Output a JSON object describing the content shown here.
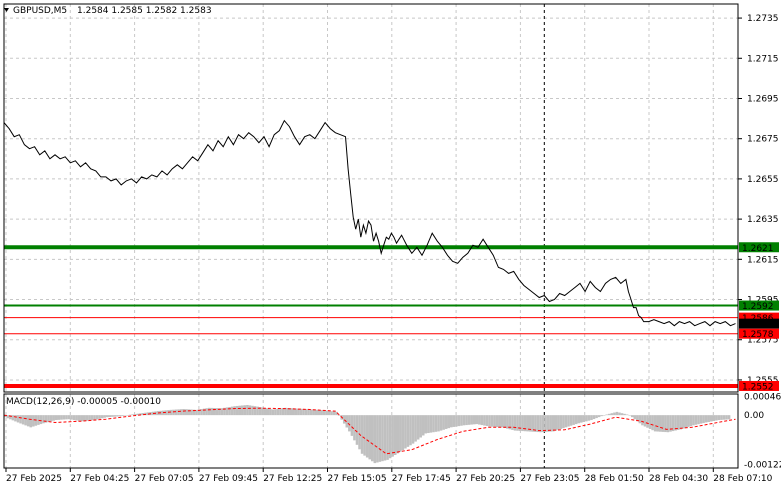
{
  "window": {
    "symbol_timeframe": "GBPUSD,M5",
    "ohlc": "1.2584 1.2585 1.2582 1.2583",
    "menu_icon": "triangle-down-icon"
  },
  "chart_data": [
    {
      "type": "line",
      "title": "GBPUSD,M5  1.2584 1.2585 1.2582 1.2583",
      "ylim": [
        1.2549,
        1.2742
      ],
      "y_ticks": [
        1.2735,
        1.2715,
        1.2695,
        1.2675,
        1.2655,
        1.2635,
        1.2615,
        1.2595,
        1.2575,
        1.2555
      ],
      "y_tick_labels": [
        "1.2735",
        "1.2715",
        "1.2695",
        "1.2675",
        "1.2655",
        "1.2635",
        "1.2615",
        "1.2595",
        "1.2575",
        "1.2555"
      ],
      "x_tick_labels": [
        "27 Feb 2025",
        "27 Feb 04:25",
        "27 Feb 07:05",
        "27 Feb 09:45",
        "27 Feb 12:25",
        "27 Feb 15:05",
        "27 Feb 17:45",
        "27 Feb 20:25",
        "27 Feb 23:05",
        "28 Feb 01:50",
        "28 Feb 04:30",
        "28 Feb 07:10"
      ],
      "grid": true,
      "series": [
        {
          "color": "#000000",
          "values": [
            [
              0,
              1.2683
            ],
            [
              2,
              1.268
            ],
            [
              4,
              1.2676
            ],
            [
              6,
              1.2677
            ],
            [
              8,
              1.2672
            ],
            [
              10,
              1.267
            ],
            [
              12,
              1.2671
            ],
            [
              14,
              1.2667
            ],
            [
              16,
              1.2669
            ],
            [
              18,
              1.2665
            ],
            [
              20,
              1.2667
            ],
            [
              22,
              1.2665
            ],
            [
              24,
              1.2666
            ],
            [
              26,
              1.2663
            ],
            [
              28,
              1.2664
            ],
            [
              30,
              1.2661
            ],
            [
              32,
              1.2663
            ],
            [
              34,
              1.266
            ],
            [
              36,
              1.2659
            ],
            [
              38,
              1.2656
            ],
            [
              40,
              1.2656
            ],
            [
              42,
              1.2654
            ],
            [
              44,
              1.2655
            ],
            [
              46,
              1.2652
            ],
            [
              48,
              1.2654
            ],
            [
              50,
              1.2655
            ],
            [
              52,
              1.2653
            ],
            [
              54,
              1.2656
            ],
            [
              56,
              1.2655
            ],
            [
              58,
              1.2657
            ],
            [
              60,
              1.2656
            ],
            [
              62,
              1.2659
            ],
            [
              64,
              1.2657
            ],
            [
              66,
              1.266
            ],
            [
              68,
              1.2662
            ],
            [
              70,
              1.266
            ],
            [
              72,
              1.2663
            ],
            [
              74,
              1.2666
            ],
            [
              76,
              1.2664
            ],
            [
              78,
              1.2668
            ],
            [
              80,
              1.2672
            ],
            [
              82,
              1.2669
            ],
            [
              84,
              1.2674
            ],
            [
              86,
              1.2671
            ],
            [
              88,
              1.2676
            ],
            [
              90,
              1.2672
            ],
            [
              92,
              1.2677
            ],
            [
              94,
              1.2675
            ],
            [
              96,
              1.2678
            ],
            [
              98,
              1.2676
            ],
            [
              100,
              1.2673
            ],
            [
              102,
              1.2676
            ],
            [
              104,
              1.2671
            ],
            [
              106,
              1.2677
            ],
            [
              108,
              1.2679
            ],
            [
              110,
              1.2684
            ],
            [
              112,
              1.2681
            ],
            [
              114,
              1.2676
            ],
            [
              116,
              1.2672
            ],
            [
              118,
              1.2676
            ],
            [
              120,
              1.2677
            ],
            [
              122,
              1.2675
            ],
            [
              124,
              1.2679
            ],
            [
              126,
              1.2683
            ],
            [
              128,
              1.268
            ],
            [
              130,
              1.2678
            ],
            [
              132,
              1.2677
            ],
            [
              134,
              1.2676
            ],
            [
              135,
              1.266
            ],
            [
              136,
              1.2648
            ],
            [
              137,
              1.2636
            ],
            [
              138,
              1.263
            ],
            [
              139,
              1.2635
            ],
            [
              140,
              1.2626
            ],
            [
              141,
              1.2632
            ],
            [
              142,
              1.2628
            ],
            [
              143,
              1.2634
            ],
            [
              144,
              1.2632
            ],
            [
              145,
              1.2624
            ],
            [
              146,
              1.2628
            ],
            [
              147,
              1.2624
            ],
            [
              148,
              1.2618
            ],
            [
              149,
              1.2622
            ],
            [
              150,
              1.2626
            ],
            [
              151,
              1.2625
            ],
            [
              152,
              1.2628
            ],
            [
              153,
              1.2626
            ],
            [
              154,
              1.2623
            ],
            [
              155,
              1.2625
            ],
            [
              156,
              1.2627
            ],
            [
              158,
              1.2622
            ],
            [
              160,
              1.2618
            ],
            [
              162,
              1.2621
            ],
            [
              164,
              1.2617
            ],
            [
              166,
              1.2622
            ],
            [
              168,
              1.2628
            ],
            [
              170,
              1.2624
            ],
            [
              172,
              1.2621
            ],
            [
              174,
              1.2617
            ],
            [
              176,
              1.2614
            ],
            [
              178,
              1.2613
            ],
            [
              180,
              1.2616
            ],
            [
              182,
              1.2618
            ],
            [
              184,
              1.2622
            ],
            [
              186,
              1.2621
            ],
            [
              188,
              1.2625
            ],
            [
              190,
              1.2621
            ],
            [
              192,
              1.2617
            ],
            [
              194,
              1.2611
            ],
            [
              196,
              1.261
            ],
            [
              198,
              1.2608
            ],
            [
              200,
              1.2609
            ],
            [
              202,
              1.2605
            ],
            [
              204,
              1.2602
            ],
            [
              206,
              1.26
            ],
            [
              208,
              1.2598
            ],
            [
              210,
              1.2596
            ],
            [
              212,
              1.2597
            ],
            [
              214,
              1.2594
            ],
            [
              216,
              1.2595
            ],
            [
              218,
              1.2598
            ],
            [
              220,
              1.2597
            ],
            [
              222,
              1.2599
            ],
            [
              224,
              1.2601
            ],
            [
              226,
              1.2603
            ],
            [
              228,
              1.2599
            ],
            [
              230,
              1.2604
            ],
            [
              232,
              1.2601
            ],
            [
              234,
              1.2599
            ],
            [
              236,
              1.2603
            ],
            [
              238,
              1.2605
            ],
            [
              240,
              1.2606
            ],
            [
              242,
              1.2603
            ],
            [
              244,
              1.2605
            ],
            [
              245,
              1.2599
            ],
            [
              246,
              1.2595
            ],
            [
              247,
              1.2591
            ],
            [
              248,
              1.2591
            ],
            [
              249,
              1.2587
            ],
            [
              250,
              1.2586
            ],
            [
              251,
              1.2584
            ],
            [
              253,
              1.2584
            ],
            [
              255,
              1.2585
            ],
            [
              257,
              1.2584
            ],
            [
              259,
              1.2583
            ],
            [
              261,
              1.2584
            ],
            [
              263,
              1.2582
            ],
            [
              265,
              1.2584
            ],
            [
              267,
              1.2583
            ],
            [
              269,
              1.2584
            ],
            [
              271,
              1.2582
            ],
            [
              273,
              1.2583
            ],
            [
              275,
              1.2584
            ],
            [
              277,
              1.2582
            ],
            [
              279,
              1.2584
            ],
            [
              281,
              1.2583
            ],
            [
              283,
              1.2584
            ],
            [
              285,
              1.2582
            ],
            [
              287,
              1.2583
            ]
          ]
        }
      ],
      "levels": [
        {
          "value": 1.2621,
          "label": "1.2621",
          "color": "#008000"
        },
        {
          "value": 1.2592,
          "label": "1.2592",
          "color": "#008000"
        },
        {
          "value": 1.2586,
          "label": "1.2586",
          "color": "#ff0000"
        },
        {
          "value": 1.2583,
          "label": "1.2583",
          "color": "#000000"
        },
        {
          "value": 1.2578,
          "label": "1.2578",
          "color": "#ff0000"
        },
        {
          "value": 1.2552,
          "label": "1.2552",
          "color": "#ff0000"
        }
      ],
      "vertical_marker_x": 212
    },
    {
      "type": "bar",
      "title": "MACD(12,26,9) -0.00005 -0.00010",
      "ylim": [
        -0.0013,
        0.00052
      ],
      "y_ticks": [
        0.00046,
        0.0,
        -0.00122
      ],
      "y_tick_labels": [
        "0.00046",
        "0.00",
        "-0.00122"
      ],
      "series": [
        {
          "name": "MACD",
          "color": "#c0c0c0",
          "values": [
            [
              0,
              -5e-05
            ],
            [
              5,
              -0.00018
            ],
            [
              10,
              -0.0003
            ],
            [
              15,
              -0.0002
            ],
            [
              20,
              -0.00012
            ],
            [
              25,
              -0.0001
            ],
            [
              30,
              -0.00015
            ],
            [
              35,
              -0.00012
            ],
            [
              40,
              -5e-05
            ],
            [
              45,
              -3e-05
            ],
            [
              50,
              2e-05
            ],
            [
              55,
              6e-05
            ],
            [
              60,
              0.0001
            ],
            [
              65,
              0.00013
            ],
            [
              70,
              0.00015
            ],
            [
              75,
              0.00013
            ],
            [
              80,
              0.00018
            ],
            [
              85,
              0.00017
            ],
            [
              90,
              0.00022
            ],
            [
              95,
              0.00025
            ],
            [
              100,
              0.0002
            ],
            [
              105,
              0.00014
            ],
            [
              110,
              0.00018
            ],
            [
              115,
              0.00016
            ],
            [
              120,
              0.00014
            ],
            [
              125,
              0.00012
            ],
            [
              130,
              8e-05
            ],
            [
              135,
              -0.0004
            ],
            [
              140,
              -0.00095
            ],
            [
              145,
              -0.00118
            ],
            [
              150,
              -0.0011
            ],
            [
              155,
              -0.0009
            ],
            [
              160,
              -0.0007
            ],
            [
              165,
              -0.00045
            ],
            [
              170,
              -0.0004
            ],
            [
              175,
              -0.0003
            ],
            [
              180,
              -0.00025
            ],
            [
              185,
              -0.00022
            ],
            [
              190,
              -0.00028
            ],
            [
              195,
              -0.0003
            ],
            [
              200,
              -0.00038
            ],
            [
              205,
              -0.0004
            ],
            [
              210,
              -0.00042
            ],
            [
              215,
              -0.0004
            ],
            [
              220,
              -0.0003
            ],
            [
              225,
              -0.0002
            ],
            [
              230,
              -0.00012
            ],
            [
              235,
              0.0
            ],
            [
              240,
              8e-05
            ],
            [
              245,
              0.0
            ],
            [
              250,
              -0.00025
            ],
            [
              255,
              -0.0004
            ],
            [
              260,
              -0.00042
            ],
            [
              265,
              -0.00035
            ],
            [
              270,
              -0.00025
            ],
            [
              275,
              -0.00018
            ],
            [
              280,
              -0.00012
            ],
            [
              285,
              -0.0001
            ]
          ]
        },
        {
          "name": "Signal",
          "color": "#ff0000",
          "values": [
            [
              0,
              0.0
            ],
            [
              10,
              -0.0001
            ],
            [
              20,
              -0.00018
            ],
            [
              30,
              -0.00015
            ],
            [
              40,
              -0.0001
            ],
            [
              50,
              -2e-05
            ],
            [
              60,
              5e-05
            ],
            [
              70,
              0.0001
            ],
            [
              80,
              0.00013
            ],
            [
              90,
              0.00016
            ],
            [
              100,
              0.00017
            ],
            [
              110,
              0.00016
            ],
            [
              120,
              0.00014
            ],
            [
              130,
              0.0001
            ],
            [
              140,
              -0.0005
            ],
            [
              150,
              -0.00095
            ],
            [
              160,
              -0.00085
            ],
            [
              170,
              -0.0006
            ],
            [
              180,
              -0.0004
            ],
            [
              190,
              -0.0003
            ],
            [
              200,
              -0.0003
            ],
            [
              210,
              -0.00038
            ],
            [
              220,
              -0.00036
            ],
            [
              230,
              -0.00022
            ],
            [
              240,
              -5e-05
            ],
            [
              250,
              -0.00015
            ],
            [
              260,
              -0.00035
            ],
            [
              270,
              -0.0003
            ],
            [
              280,
              -0.00018
            ],
            [
              287,
              -0.0001
            ]
          ]
        }
      ]
    }
  ]
}
